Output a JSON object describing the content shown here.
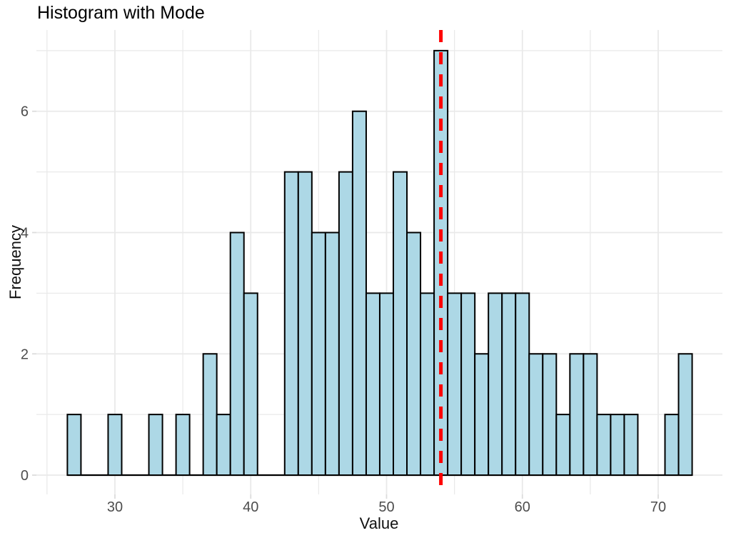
{
  "chart_data": {
    "type": "bar",
    "subtype": "histogram",
    "title": "Histogram with Mode",
    "xlabel": "Value",
    "ylabel": "Frequency",
    "bin_width": 1,
    "bin_centers": [
      27,
      28,
      29,
      30,
      31,
      32,
      33,
      34,
      35,
      36,
      37,
      38,
      39,
      40,
      41,
      42,
      43,
      44,
      45,
      46,
      47,
      48,
      49,
      50,
      51,
      52,
      53,
      54,
      55,
      56,
      57,
      58,
      59,
      60,
      61,
      62,
      63,
      64,
      65,
      66,
      67,
      68,
      69,
      70,
      71,
      72
    ],
    "counts": [
      1,
      0,
      0,
      1,
      0,
      0,
      1,
      0,
      1,
      0,
      2,
      1,
      4,
      3,
      0,
      0,
      5,
      5,
      4,
      4,
      5,
      6,
      3,
      3,
      5,
      4,
      3,
      7,
      3,
      3,
      2,
      3,
      3,
      3,
      2,
      2,
      1,
      2,
      2,
      1,
      1,
      1,
      0,
      0,
      1,
      2
    ],
    "mode_line_x": 54,
    "x_ticks": [
      30,
      40,
      50,
      60,
      70
    ],
    "x_minor_ticks": [
      25,
      35,
      45,
      55,
      65
    ],
    "y_ticks": [
      0,
      2,
      4,
      6
    ],
    "y_minor_ticks": [
      1,
      3,
      5,
      7
    ],
    "x_domain": [
      24.22,
      74.73
    ],
    "y_domain": [
      -0.318,
      7.34
    ],
    "grid": true,
    "legend": "none",
    "colors": {
      "bar_fill": "#ADD8E6",
      "bar_stroke": "#000000",
      "mode_line": "#FF0000",
      "grid_line": "#E9E9E9",
      "tick_mark": "#DCDCDC",
      "tick_text": "#4D4D4D",
      "title_text": "#000000",
      "background": "#FFFFFF"
    }
  }
}
